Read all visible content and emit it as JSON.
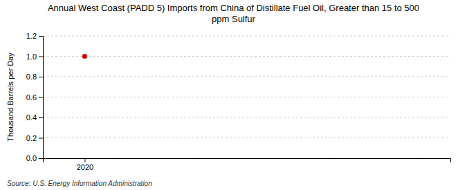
{
  "chart_data": {
    "type": "scatter",
    "title": "Annual West Coast (PADD 5) Imports from China of Distillate Fuel Oil, Greater than 15 to 500\nppm Sulfur",
    "y_label": "Thousand Barrels per Day",
    "source": "Source: U.S. Energy Information Administration",
    "x": [
      2020
    ],
    "values": [
      1.0
    ],
    "color": "#cc0000",
    "marker": "circle",
    "xlim": [
      2019.6,
      2023.5
    ],
    "xticks": [
      2020
    ],
    "ylim": [
      0.0,
      1.2
    ],
    "yticks": [
      {
        "value": 0.0,
        "label": "0.0"
      },
      0.2,
      0.4,
      0.6,
      0.8,
      {
        "value": 1.0,
        "label": "1.0"
      },
      1.2
    ],
    "grid": true
  }
}
